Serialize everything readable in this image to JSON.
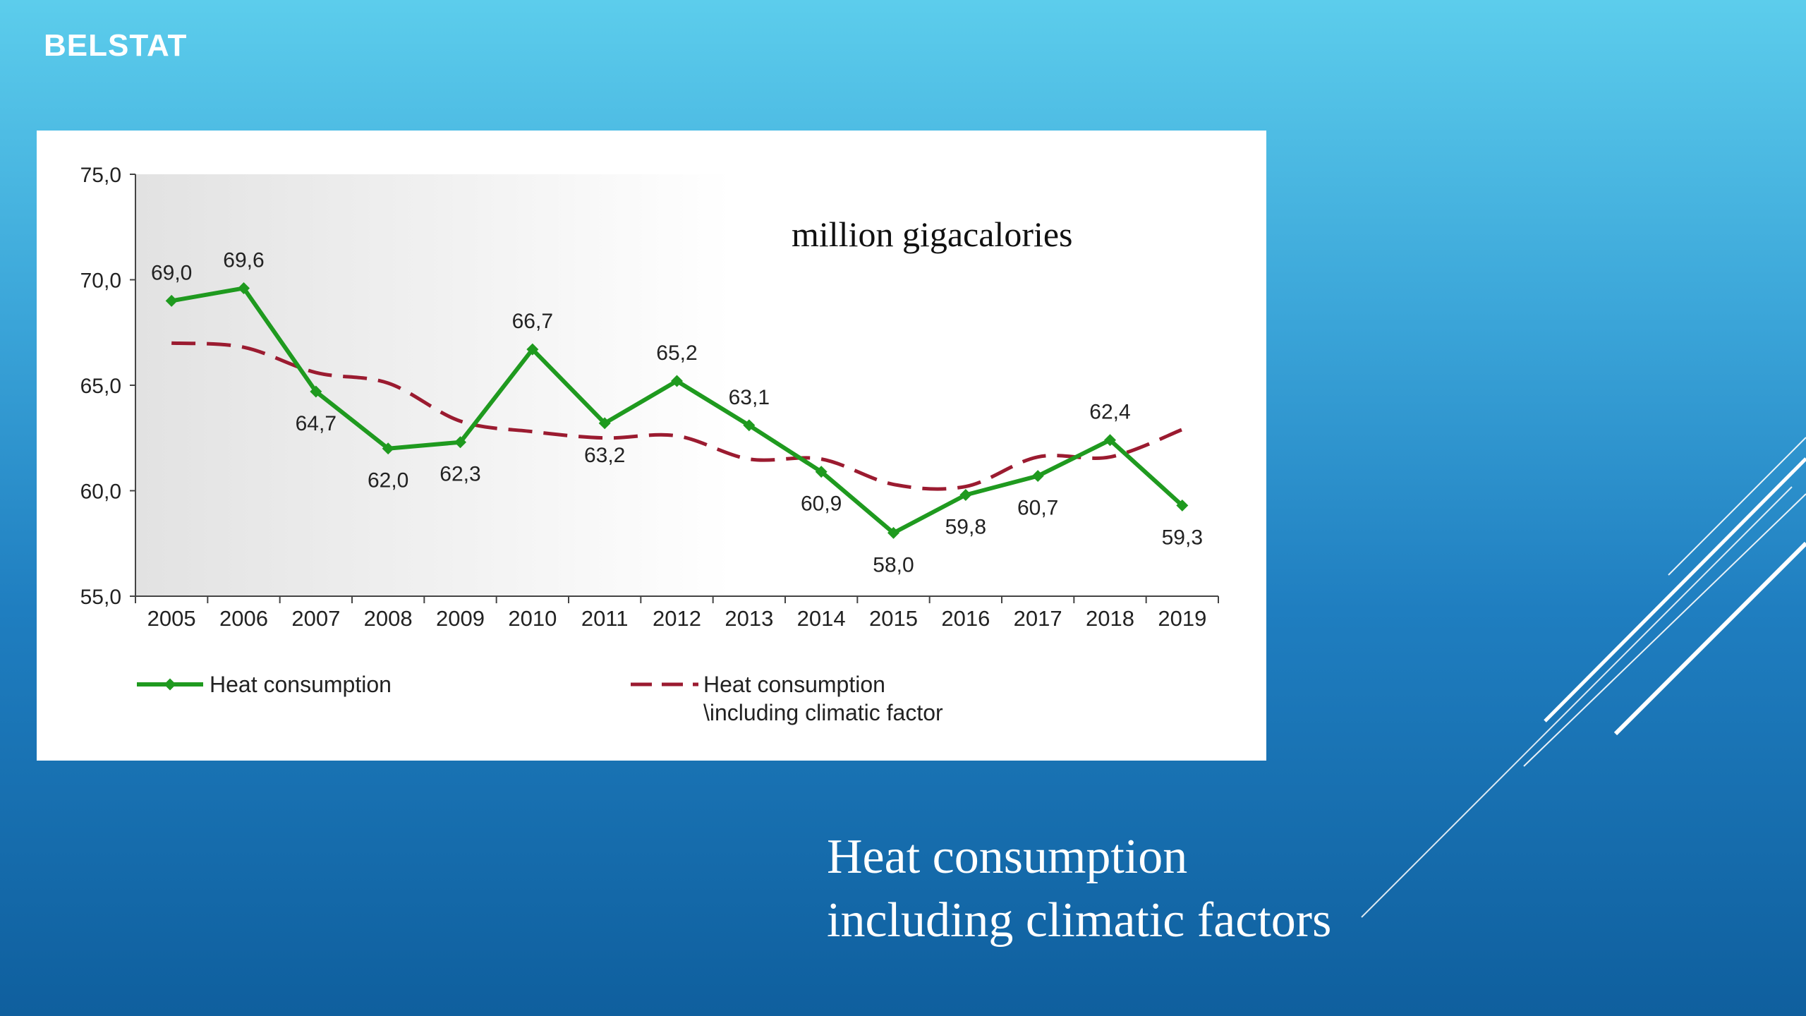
{
  "header": {
    "brand": "BELSTAT"
  },
  "slide": {
    "title_line1": "Heat consumption",
    "title_line2": "including climatic factors"
  },
  "colors": {
    "series_solid": "#1f9a1f",
    "series_dashed": "#9b1b30",
    "plot_gradient_left": "#e2e2e2"
  },
  "chart_data": {
    "type": "line",
    "unit_label": "million gigacalories",
    "x": [
      "2005",
      "2006",
      "2007",
      "2008",
      "2009",
      "2010",
      "2011",
      "2012",
      "2013",
      "2014",
      "2015",
      "2016",
      "2017",
      "2018",
      "2019"
    ],
    "ylim": [
      55.0,
      75.0
    ],
    "yticks": [
      "55,0",
      "60,0",
      "65,0",
      "70,0",
      "75,0"
    ],
    "ytick_values": [
      55,
      60,
      65,
      70,
      75
    ],
    "legend_position": "bottom",
    "series": [
      {
        "name": "Heat consumption",
        "style": "solid-markers",
        "values": [
          69.0,
          69.6,
          64.7,
          62.0,
          62.3,
          66.7,
          63.2,
          65.2,
          63.1,
          60.9,
          58.0,
          59.8,
          60.7,
          62.4,
          59.3
        ],
        "labels": [
          "69,0",
          "69,6",
          "64,7",
          "62,0",
          "62,3",
          "66,7",
          "63,2",
          "65,2",
          "63,1",
          "60,9",
          "58,0",
          "59,8",
          "60,7",
          "62,4",
          "59,3"
        ]
      },
      {
        "name": "Heat consumption \\including climatic factor",
        "name_line1": "Heat consumption",
        "name_line2": "\\including climatic factor",
        "style": "dashed",
        "values": [
          67.0,
          66.8,
          65.6,
          65.1,
          63.3,
          62.8,
          62.5,
          62.6,
          61.5,
          61.5,
          60.3,
          60.2,
          61.6,
          61.6,
          62.9
        ]
      }
    ]
  }
}
